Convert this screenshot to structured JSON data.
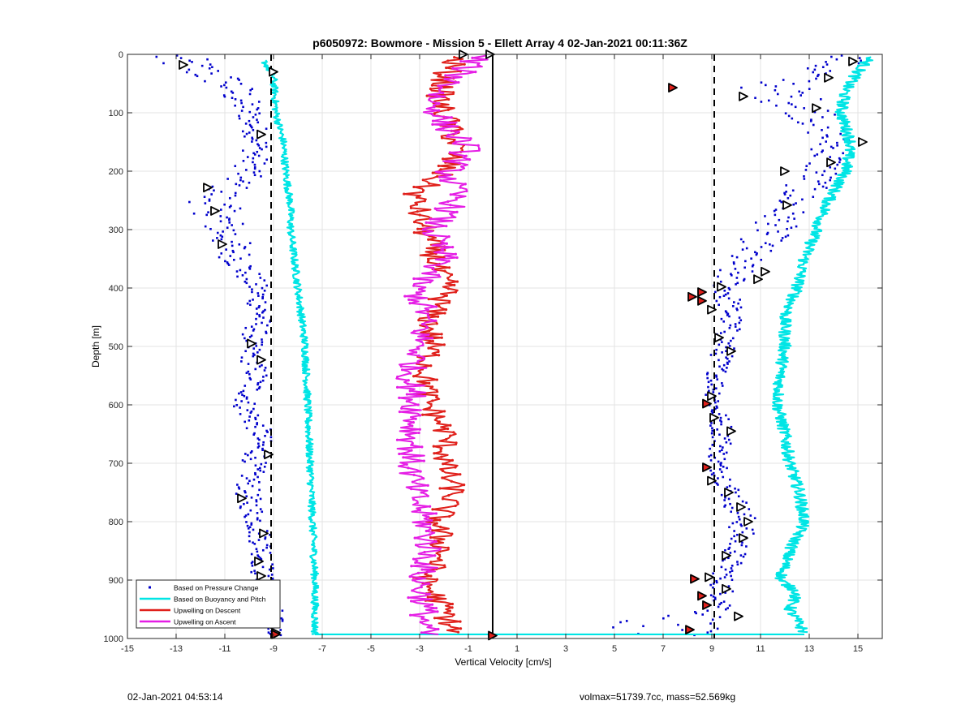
{
  "chart_data": {
    "type": "scatter",
    "title": "p6050972: Bowmore - Mission 5 - Ellett Array 4 02-Jan-2021 00:11:36Z",
    "xlabel": "Vertical Velocity [cm/s]",
    "ylabel": "Depth [m]",
    "xlim": [
      -15,
      16
    ],
    "ylim": [
      0,
      1000
    ],
    "y_reversed": true,
    "grid": true,
    "x_ticks": [
      "-15",
      "-13",
      "-11",
      "-9",
      "-7",
      "-5",
      "-3",
      "-1",
      "1",
      "3",
      "5",
      "7",
      "9",
      "11",
      "13",
      "15"
    ],
    "y_ticks": [
      "0",
      "100",
      "200",
      "300",
      "400",
      "500",
      "600",
      "700",
      "800",
      "900",
      "1000"
    ],
    "legend_position": "bottom-left",
    "colors": {
      "pressure": "#0000cc",
      "buoyancy": "#00e5e5",
      "descent": "#e0201b",
      "ascent": "#e51ee5"
    },
    "reference_lines": [
      {
        "style": "dashed",
        "x": -9.1
      },
      {
        "style": "dashed",
        "x": 9.1
      },
      {
        "style": "solid",
        "x": 0
      }
    ],
    "series": [
      {
        "name": "Based on Pressure Change",
        "type": "scatter",
        "profile": [
          [
            0,
            -13.5,
            1.4
          ],
          [
            50,
            -10.8,
            1.0
          ],
          [
            100,
            -10.0,
            0.6
          ],
          [
            150,
            -9.6,
            0.5
          ],
          [
            200,
            -10.0,
            0.7
          ],
          [
            250,
            -11.5,
            1.0
          ],
          [
            300,
            -11.0,
            1.0
          ],
          [
            350,
            -10.5,
            0.7
          ],
          [
            400,
            -9.7,
            0.5
          ],
          [
            450,
            -9.5,
            0.5
          ],
          [
            500,
            -10.0,
            0.5
          ],
          [
            550,
            -9.7,
            0.5
          ],
          [
            600,
            -10.2,
            0.5
          ],
          [
            650,
            -9.5,
            0.5
          ],
          [
            700,
            -9.8,
            0.5
          ],
          [
            750,
            -10.1,
            0.5
          ],
          [
            800,
            -9.7,
            0.5
          ],
          [
            850,
            -9.4,
            0.5
          ],
          [
            900,
            -9.5,
            0.5
          ],
          [
            950,
            -9.1,
            0.5
          ],
          [
            995,
            -8.9,
            0.3
          ]
        ],
        "profile_right": [
          [
            0,
            15.0,
            0.8
          ],
          [
            60,
            11.5,
            1.6
          ],
          [
            100,
            13.2,
            1.2
          ],
          [
            150,
            14.0,
            0.8
          ],
          [
            200,
            13.5,
            0.9
          ],
          [
            250,
            12.3,
            0.9
          ],
          [
            300,
            11.5,
            0.9
          ],
          [
            360,
            10.0,
            0.9
          ],
          [
            400,
            9.6,
            0.6
          ],
          [
            450,
            9.8,
            0.5
          ],
          [
            500,
            9.5,
            0.5
          ],
          [
            550,
            9.2,
            0.4
          ],
          [
            600,
            9.1,
            0.4
          ],
          [
            650,
            9.5,
            0.5
          ],
          [
            700,
            9.2,
            0.4
          ],
          [
            750,
            9.8,
            0.5
          ],
          [
            800,
            10.3,
            0.6
          ],
          [
            850,
            10.0,
            0.5
          ],
          [
            900,
            9.4,
            0.5
          ],
          [
            950,
            9.5,
            0.5
          ],
          [
            995,
            5,
            4
          ]
        ]
      },
      {
        "name": "Based on Buoyancy and Pitch",
        "type": "line",
        "profile": [
          [
            10,
            -9.4
          ],
          [
            40,
            -9.0
          ],
          [
            100,
            -8.9
          ],
          [
            150,
            -8.6
          ],
          [
            200,
            -8.5
          ],
          [
            260,
            -8.3
          ],
          [
            300,
            -8.3
          ],
          [
            400,
            -8.0
          ],
          [
            500,
            -7.7
          ],
          [
            600,
            -7.6
          ],
          [
            700,
            -7.5
          ],
          [
            800,
            -7.4
          ],
          [
            900,
            -7.3
          ],
          [
            980,
            -7.3
          ],
          [
            993,
            -7.3
          ]
        ],
        "profile_right": [
          [
            5,
            15.5
          ],
          [
            30,
            15.0
          ],
          [
            60,
            14.5
          ],
          [
            100,
            14.3
          ],
          [
            150,
            14.7
          ],
          [
            200,
            14.5
          ],
          [
            250,
            13.8
          ],
          [
            300,
            13.3
          ],
          [
            350,
            12.8
          ],
          [
            400,
            12.5
          ],
          [
            450,
            12.0
          ],
          [
            500,
            12.0
          ],
          [
            550,
            11.8
          ],
          [
            600,
            11.7
          ],
          [
            650,
            12.0
          ],
          [
            700,
            12.2
          ],
          [
            750,
            12.6
          ],
          [
            800,
            12.8
          ],
          [
            850,
            12.2
          ],
          [
            900,
            11.8
          ],
          [
            920,
            12.5
          ],
          [
            950,
            12.2
          ],
          [
            990,
            12.8
          ]
        ]
      },
      {
        "name": "Upwelling on Descent",
        "type": "line",
        "profile": [
          [
            5,
            -1.5
          ],
          [
            40,
            -2.0
          ],
          [
            80,
            -2.2
          ],
          [
            120,
            -1.8
          ],
          [
            160,
            -1.5
          ],
          [
            200,
            -2.0
          ],
          [
            240,
            -3.2
          ],
          [
            280,
            -3.0
          ],
          [
            330,
            -2.5
          ],
          [
            370,
            -2.3
          ],
          [
            400,
            -1.8
          ],
          [
            450,
            -2.6
          ],
          [
            500,
            -2.5
          ],
          [
            550,
            -2.8
          ],
          [
            600,
            -2.6
          ],
          [
            650,
            -1.9
          ],
          [
            700,
            -2.0
          ],
          [
            750,
            -1.6
          ],
          [
            800,
            -2.3
          ],
          [
            850,
            -2.0
          ],
          [
            900,
            -2.8
          ],
          [
            950,
            -2.0
          ],
          [
            990,
            -1.6
          ]
        ]
      },
      {
        "name": "Upwelling on Ascent",
        "type": "line",
        "profile": [
          [
            0,
            -0.5
          ],
          [
            40,
            -1.5
          ],
          [
            80,
            -2.5
          ],
          [
            120,
            -2.0
          ],
          [
            160,
            -1.0
          ],
          [
            200,
            -1.8
          ],
          [
            250,
            -1.5
          ],
          [
            300,
            -2.5
          ],
          [
            350,
            -2.0
          ],
          [
            400,
            -3.2
          ],
          [
            440,
            -2.8
          ],
          [
            500,
            -3.0
          ],
          [
            550,
            -3.4
          ],
          [
            600,
            -3.2
          ],
          [
            650,
            -3.3
          ],
          [
            700,
            -3.4
          ],
          [
            750,
            -3.2
          ],
          [
            800,
            -2.8
          ],
          [
            850,
            -2.6
          ],
          [
            900,
            -3.0
          ],
          [
            950,
            -2.8
          ],
          [
            993,
            -2.8
          ]
        ]
      }
    ],
    "markers": {
      "open": [
        [
          -12.7,
          18
        ],
        [
          -9.0,
          30
        ],
        [
          -9.5,
          137
        ],
        [
          -11.7,
          228
        ],
        [
          -11.4,
          268
        ],
        [
          -11.1,
          325
        ],
        [
          -9.9,
          495
        ],
        [
          -9.5,
          523
        ],
        [
          -10.3,
          760
        ],
        [
          -9.4,
          820
        ],
        [
          -9.5,
          893
        ],
        [
          -8.9,
          990
        ],
        [
          -1.2,
          0
        ],
        [
          -0.1,
          0
        ],
        [
          -9.2,
          685
        ],
        [
          -9.6,
          868
        ],
        [
          14.8,
          12
        ],
        [
          13.8,
          40
        ],
        [
          10.3,
          72
        ],
        [
          13.3,
          92
        ],
        [
          15.2,
          150
        ],
        [
          13.9,
          185
        ],
        [
          12.0,
          200
        ],
        [
          12.1,
          258
        ],
        [
          11.2,
          372
        ],
        [
          10.9,
          385
        ],
        [
          9.4,
          398
        ],
        [
          9.3,
          485
        ],
        [
          9.8,
          508
        ],
        [
          9.0,
          585
        ],
        [
          9.1,
          622
        ],
        [
          9.8,
          645
        ],
        [
          9.0,
          730
        ],
        [
          9.7,
          750
        ],
        [
          10.2,
          775
        ],
        [
          10.5,
          800
        ],
        [
          10.3,
          828
        ],
        [
          9.6,
          858
        ],
        [
          8.9,
          895
        ],
        [
          9.6,
          915
        ],
        [
          10.1,
          962
        ],
        [
          9.0,
          437
        ]
      ],
      "filled": [
        [
          7.4,
          57
        ],
        [
          8.6,
          407
        ],
        [
          8.2,
          415
        ],
        [
          8.6,
          422
        ],
        [
          8.8,
          598
        ],
        [
          8.8,
          707
        ],
        [
          8.3,
          898
        ],
        [
          8.6,
          927
        ],
        [
          8.8,
          943
        ],
        [
          8.1,
          985
        ],
        [
          -8.9,
          993
        ],
        [
          0,
          995
        ]
      ]
    }
  },
  "footer": {
    "left_text": "02-Jan-2021 04:53:14",
    "right_text": "volmax=51739.7cc, mass=52.569kg"
  }
}
